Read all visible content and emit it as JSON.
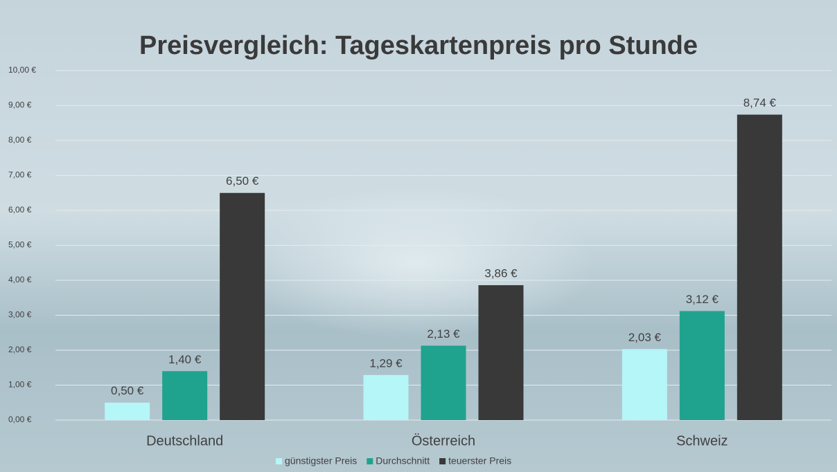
{
  "chart_data": {
    "type": "bar",
    "title": "Preisvergleich: Tageskartenpreis pro Stunde",
    "categories": [
      "Deutschland",
      "Österreich",
      "Schweiz"
    ],
    "series": [
      {
        "name": "günstigster Preis",
        "color": "#b5f6f8",
        "values": [
          0.5,
          1.29,
          2.03
        ],
        "value_labels": [
          "0,50 €",
          "1,29 €",
          "2,03 €"
        ]
      },
      {
        "name": "Durchschnitt",
        "color": "#1fa38f",
        "values": [
          1.4,
          2.13,
          3.12
        ],
        "value_labels": [
          "1,40 €",
          "2,13 €",
          "3,12 €"
        ]
      },
      {
        "name": "teuerster Preis",
        "color": "#393939",
        "values": [
          6.5,
          3.86,
          8.74
        ],
        "value_labels": [
          "6,50 €",
          "3,86 €",
          "8,74 €"
        ]
      }
    ],
    "ylim": [
      0,
      10
    ],
    "yticks": [
      {
        "value": 0,
        "label": "0,00 €"
      },
      {
        "value": 1,
        "label": "1,00 €"
      },
      {
        "value": 2,
        "label": "2,00 €"
      },
      {
        "value": 3,
        "label": "3,00 €"
      },
      {
        "value": 4,
        "label": "4,00 €"
      },
      {
        "value": 5,
        "label": "5,00 €"
      },
      {
        "value": 6,
        "label": "6,00 €"
      },
      {
        "value": 7,
        "label": "7,00 €"
      },
      {
        "value": 8,
        "label": "8,00 €"
      },
      {
        "value": 9,
        "label": "9,00 €"
      },
      {
        "value": 10,
        "label": "10,00 €"
      }
    ],
    "grid": true
  }
}
